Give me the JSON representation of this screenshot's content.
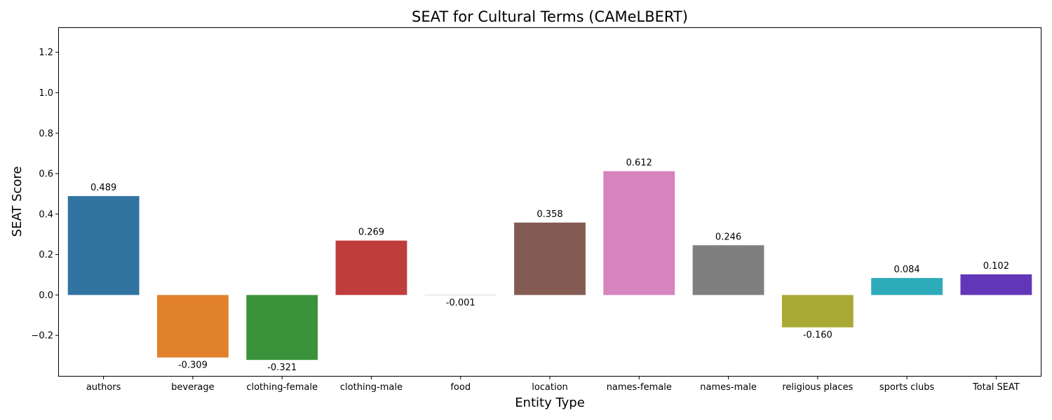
{
  "chart_data": {
    "type": "bar",
    "title": "SEAT for Cultural Terms (CAMeLBERT)",
    "xlabel": "Entity Type",
    "ylabel": "SEAT Score",
    "categories": [
      "authors",
      "beverage",
      "clothing-female",
      "clothing-male",
      "food",
      "location",
      "names-female",
      "names-male",
      "religious places",
      "sports clubs",
      "Total SEAT"
    ],
    "values": [
      0.489,
      -0.309,
      -0.321,
      0.269,
      -0.001,
      0.358,
      0.612,
      0.246,
      -0.16,
      0.084,
      0.102
    ],
    "value_labels": [
      "0.489",
      "-0.309",
      "-0.321",
      "0.269",
      "-0.001",
      "0.358",
      "0.612",
      "0.246",
      "-0.160",
      "0.084",
      "0.102"
    ],
    "colors": [
      "#3274a1",
      "#e1812c",
      "#3a923a",
      "#c03d3e",
      "#9372b2",
      "#845b53",
      "#d684bd",
      "#7f7f7f",
      "#a9aa35",
      "#2eabb8",
      "#6236b8"
    ],
    "ylim": [
      -0.4,
      1.32
    ],
    "yticks": [
      -0.2,
      0.0,
      0.2,
      0.4,
      0.6,
      0.8,
      1.0,
      1.2
    ],
    "ytick_labels": [
      "−0.2",
      "0.0",
      "0.2",
      "0.4",
      "0.6",
      "0.8",
      "1.0",
      "1.2"
    ],
    "grid": false,
    "legend": "none"
  }
}
